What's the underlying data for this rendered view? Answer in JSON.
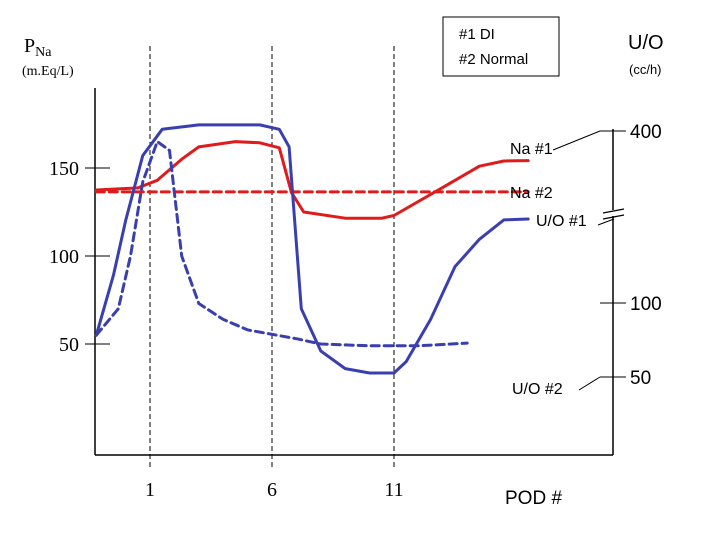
{
  "chart_data": {
    "type": "line",
    "legend": [
      "#1 DI",
      "#2 Normal"
    ],
    "left_axis": {
      "label_main": "P",
      "label_sub": "Na",
      "unit": "(m.Eq/L)",
      "ticks": [
        {
          "value": 150,
          "label": "150"
        },
        {
          "value": 100,
          "label": "100"
        },
        {
          "value": 50,
          "label": "50"
        }
      ]
    },
    "right_axis": {
      "label": "U/O",
      "unit": "(cc/h)",
      "ticks": [
        {
          "value": 400,
          "label": "400"
        },
        {
          "value": 100,
          "label": "100"
        },
        {
          "value": 50,
          "label": "50"
        }
      ],
      "axis_break": true
    },
    "x_axis": {
      "label": "POD #",
      "ticks": [
        {
          "value": 1,
          "label": "1"
        },
        {
          "value": 6,
          "label": "6"
        },
        {
          "value": 11,
          "label": "11"
        }
      ]
    },
    "series": [
      {
        "name": "Na #1",
        "color": "#e01b1b",
        "style": "solid",
        "points": [
          [
            -1.2,
            137.5
          ],
          [
            0.5,
            138.7
          ],
          [
            1.3,
            143
          ],
          [
            2.3,
            155
          ],
          [
            3,
            162
          ],
          [
            4.5,
            165
          ],
          [
            5.5,
            164.3
          ],
          [
            6.3,
            161.5
          ],
          [
            6.8,
            136
          ],
          [
            7.3,
            125
          ],
          [
            9,
            121.5
          ],
          [
            10.5,
            121.5
          ],
          [
            11,
            123
          ],
          [
            13,
            139
          ],
          [
            14.5,
            151
          ],
          [
            15.5,
            154
          ],
          [
            16.5,
            154.2
          ]
        ]
      },
      {
        "name": "Na #2",
        "color": "#e01b1b",
        "style": "dashed",
        "points": [
          [
            -1.2,
            136.4
          ],
          [
            16.5,
            136.4
          ]
        ]
      },
      {
        "name": "U/O #1",
        "color": "#3a3fb0",
        "style": "solid",
        "points": [
          [
            -1.2,
            55
          ],
          [
            -0.5,
            89
          ],
          [
            0,
            120
          ],
          [
            0.7,
            157
          ],
          [
            1.5,
            172
          ],
          [
            3,
            174.5
          ],
          [
            5.5,
            174.5
          ],
          [
            6.3,
            172
          ],
          [
            6.7,
            162
          ],
          [
            6.9,
            125
          ],
          [
            7.2,
            70
          ],
          [
            8,
            46
          ],
          [
            9,
            36
          ],
          [
            10,
            33.5
          ],
          [
            11,
            33.5
          ],
          [
            11.5,
            40
          ],
          [
            12.5,
            64
          ],
          [
            13.5,
            94
          ],
          [
            14.5,
            109.5
          ],
          [
            15.5,
            120.5
          ],
          [
            16.5,
            121
          ]
        ]
      },
      {
        "name": "U/O #2",
        "color": "#3a3fb0",
        "style": "dashed",
        "points": [
          [
            -1.2,
            55
          ],
          [
            -0.3,
            70
          ],
          [
            0.2,
            100
          ],
          [
            0.7,
            142
          ],
          [
            1.3,
            165
          ],
          [
            1.8,
            160
          ],
          [
            2.3,
            100
          ],
          [
            3,
            73
          ],
          [
            4,
            64
          ],
          [
            5,
            58
          ],
          [
            7,
            53
          ],
          [
            8,
            50
          ],
          [
            10,
            49
          ],
          [
            12,
            49
          ],
          [
            14,
            50.5
          ]
        ]
      }
    ],
    "series_labels": [
      {
        "text": "Na #1"
      },
      {
        "text": "Na #2"
      },
      {
        "text": "U/O #1"
      },
      {
        "text": "U/O #2"
      }
    ]
  }
}
